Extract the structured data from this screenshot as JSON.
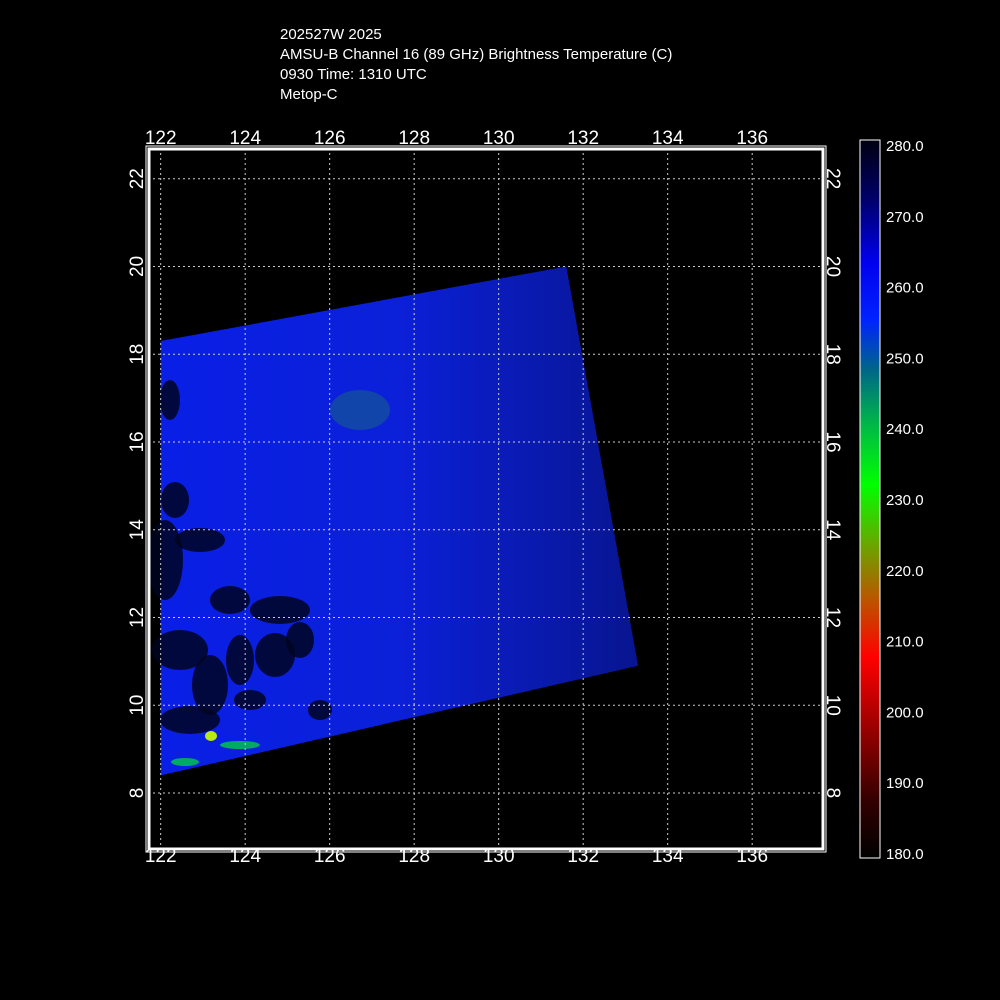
{
  "header": {
    "line1": "202527W 2025",
    "line2": "AMSU-B Channel 16 (89 GHz) Brightness Temperature (C)",
    "line3": "0930 Time: 1310 UTC",
    "line4": "Metop-C"
  },
  "chart_data": {
    "type": "heatmap",
    "title": "AMSU-B Channel 16 (89 GHz) Brightness Temperature (C)",
    "xlabel": "",
    "ylabel": "",
    "xlim": [
      121.7,
      137.7
    ],
    "ylim": [
      6.7,
      22.7
    ],
    "x_ticks": [
      122,
      124,
      126,
      128,
      130,
      132,
      134,
      136
    ],
    "y_ticks": [
      8,
      10,
      12,
      14,
      16,
      18,
      20,
      22
    ],
    "x_tick_labels": [
      "122",
      "124",
      "126",
      "128",
      "130",
      "132",
      "134",
      "136"
    ],
    "y_tick_labels": [
      "8",
      "10",
      "12",
      "14",
      "16",
      "18",
      "20",
      "22"
    ],
    "grid": true,
    "swath_corners": [
      [
        122.0,
        18.3
      ],
      [
        131.6,
        20.0
      ],
      [
        133.3,
        10.9
      ],
      [
        122.0,
        8.4
      ]
    ],
    "colorbar": {
      "min": 180,
      "max": 280,
      "tick_values": [
        280,
        270,
        260,
        250,
        240,
        230,
        220,
        210,
        200,
        190,
        180
      ],
      "tick_labels": [
        "280.0",
        "270.0",
        "260.0",
        "250.0",
        "240.0",
        "230.0",
        "220.0",
        "210.0",
        "200.0",
        "190.0",
        "180.0"
      ],
      "colors": [
        "#000000",
        "#550000",
        "#ff0000",
        "#b46400",
        "#00ff00",
        "#006666",
        "#0000ff",
        "#000099",
        "#000000"
      ]
    },
    "colors": {
      "background": "#000000",
      "grid": "#cccccc",
      "frame": "#ffffff"
    }
  }
}
